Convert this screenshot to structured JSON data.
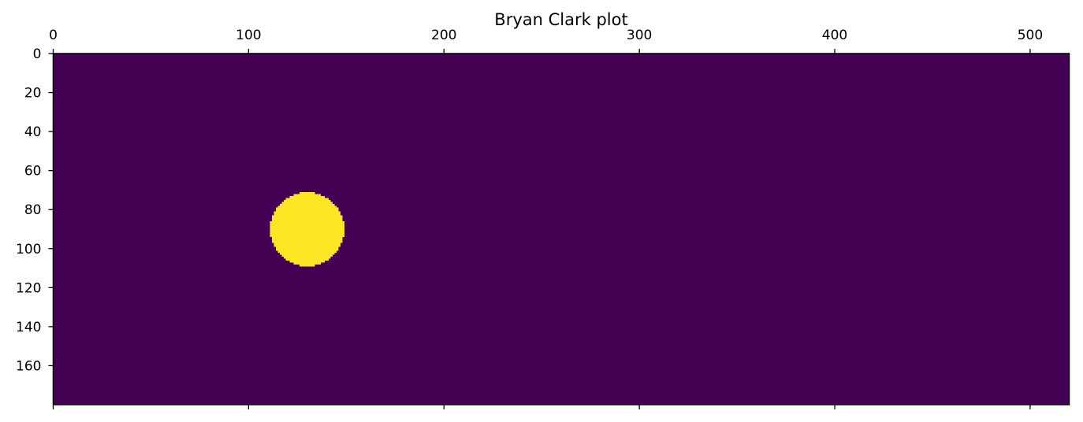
{
  "chart_data": {
    "type": "heatmap",
    "title": "Bryan Clark plot",
    "xlabel": "",
    "ylabel": "",
    "x_ticks": [
      0,
      100,
      200,
      300,
      400,
      500
    ],
    "y_ticks": [
      0,
      20,
      40,
      60,
      80,
      100,
      120,
      140,
      160
    ],
    "xlim": [
      0,
      520
    ],
    "ylim": [
      180,
      0
    ],
    "x_axis_position": "top",
    "grid": false,
    "legend": "none",
    "background_value": 0,
    "shapes": [
      {
        "shape": "disk",
        "value": 1,
        "center": [
          130,
          90
        ],
        "radius": 19
      }
    ],
    "colormap": "viridis",
    "colors": {
      "low": "#440154",
      "high": "#fde725"
    }
  }
}
